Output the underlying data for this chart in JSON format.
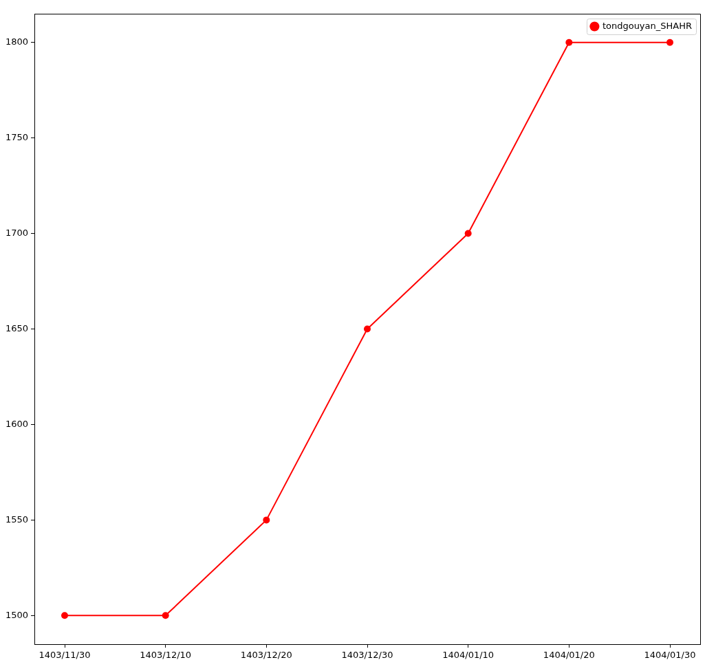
{
  "chart_data": {
    "type": "line",
    "categories": [
      "1403/11/30",
      "1403/12/10",
      "1403/12/20",
      "1403/12/30",
      "1404/01/10",
      "1404/01/20",
      "1404/01/30"
    ],
    "series": [
      {
        "name": "tondgouyan_SHAHR",
        "color": "#ff0000",
        "values": [
          1500,
          1500,
          1550,
          1650,
          1700,
          1800,
          1800
        ]
      }
    ],
    "ylim": [
      1485,
      1815
    ],
    "yticks": [
      1500,
      1550,
      1600,
      1650,
      1700,
      1750,
      1800
    ],
    "grid": false,
    "legend": "top right",
    "marker": "circle",
    "line_style": "solid"
  }
}
